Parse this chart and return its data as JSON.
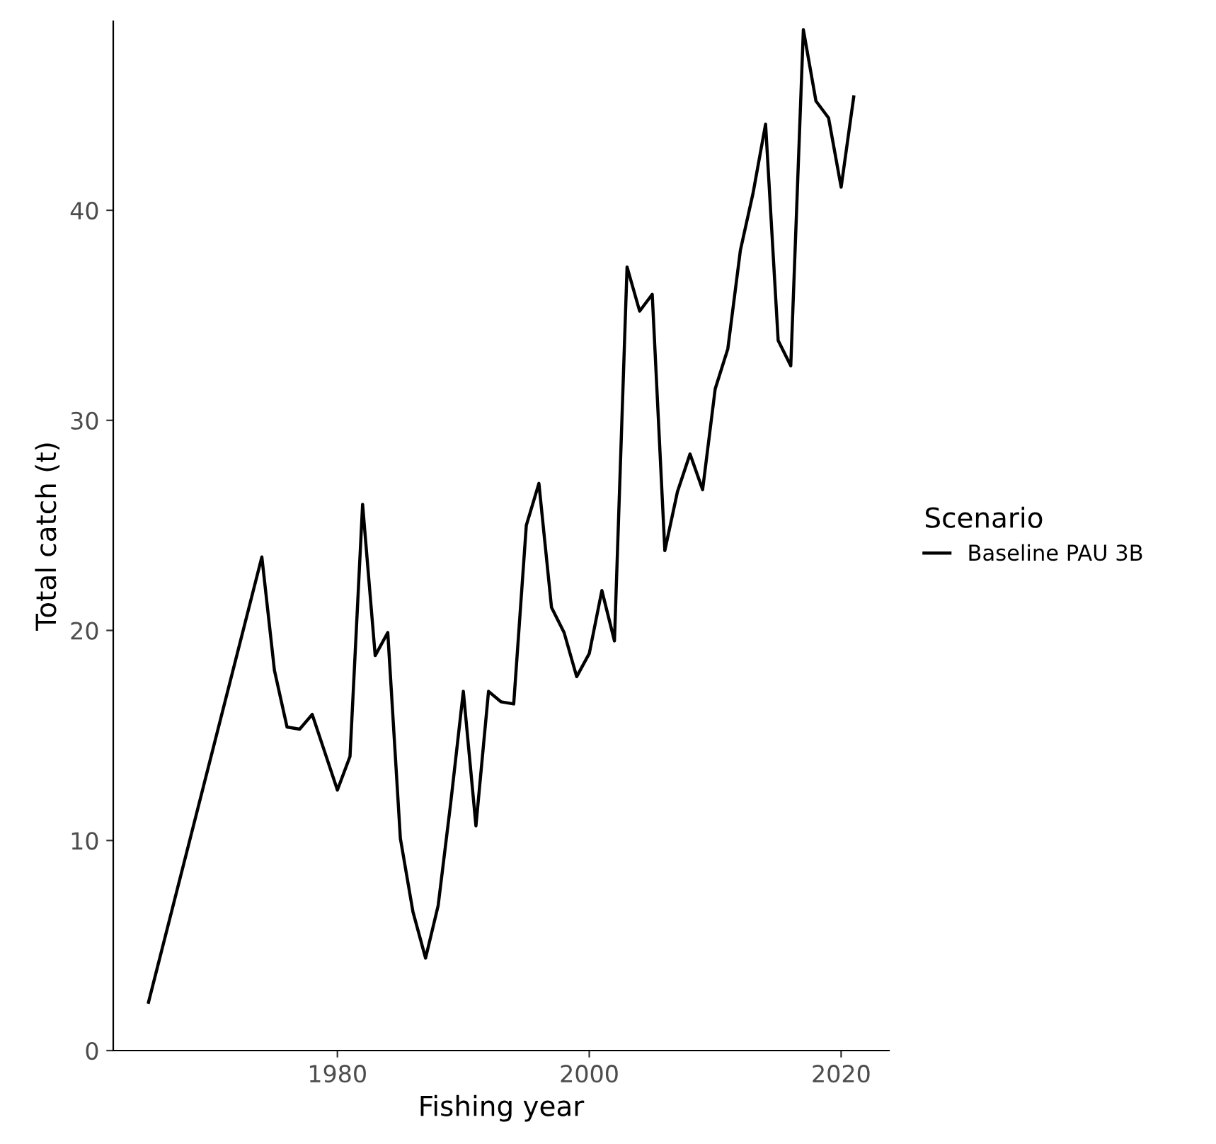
{
  "chart_data": {
    "type": "line",
    "xlabel": "Fishing year",
    "ylabel": "Total catch (t)",
    "legend_title": "Scenario",
    "legend": "right",
    "grid": false,
    "x": [
      1965,
      1974,
      1975,
      1976,
      1977,
      1978,
      1979,
      1980,
      1981,
      1982,
      1983,
      1984,
      1985,
      1986,
      1987,
      1988,
      1989,
      1990,
      1991,
      1992,
      1993,
      1994,
      1995,
      1996,
      1997,
      1998,
      1999,
      2000,
      2001,
      2002,
      2003,
      2004,
      2005,
      2006,
      2007,
      2008,
      2009,
      2010,
      2011,
      2012,
      2013,
      2014,
      2015,
      2016,
      2017,
      2018,
      2019,
      2020,
      2021
    ],
    "series": [
      {
        "name": "Baseline PAU 3B",
        "color": "#000000",
        "values": [
          2.3,
          23.5,
          18.1,
          15.4,
          15.3,
          16.0,
          14.2,
          12.4,
          14.0,
          26.0,
          18.8,
          19.9,
          10.1,
          6.6,
          4.4,
          6.9,
          11.8,
          17.1,
          10.7,
          17.1,
          16.6,
          16.5,
          25.0,
          27.0,
          21.1,
          19.9,
          17.8,
          18.9,
          21.9,
          19.5,
          37.3,
          35.2,
          36.0,
          23.8,
          26.6,
          28.4,
          26.7,
          31.5,
          33.4,
          38.1,
          40.8,
          44.1,
          33.8,
          32.6,
          48.6,
          45.2,
          44.4,
          41.1,
          45.4
        ]
      }
    ],
    "xlim": [
      1962.2,
      2023.8
    ],
    "xticks": [
      1980,
      2000,
      2020
    ],
    "ylim": [
      0,
      49
    ],
    "yticks": [
      0,
      10,
      20,
      30,
      40
    ]
  }
}
